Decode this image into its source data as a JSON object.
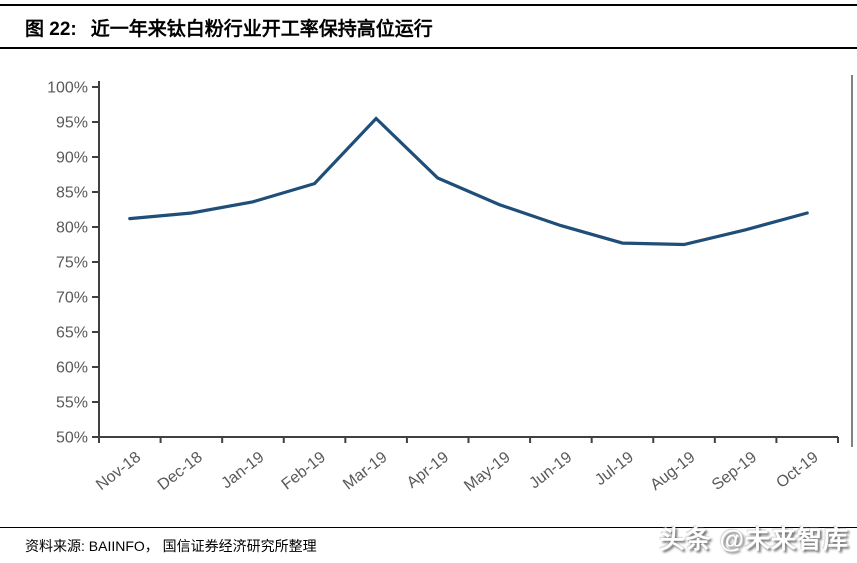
{
  "figure": {
    "label": "图 22:",
    "title": "近一年来钛白粉行业开工率保持高位运行"
  },
  "footer": {
    "source": "资料来源: BAIINFO， 国信证券经济研究所整理",
    "watermark": "头条 @未来智库"
  },
  "colors": {
    "line": "#1F4E79",
    "axis": "#404040",
    "right_border": "#595959",
    "tick_label": "#595959",
    "rule": "#000000"
  },
  "chart_data": {
    "type": "line",
    "title": "近一年来钛白粉行业开工率保持高位运行",
    "categories": [
      "Nov-18",
      "Dec-18",
      "Jan-19",
      "Feb-19",
      "Mar-19",
      "Apr-19",
      "May-19",
      "Jun-19",
      "Jul-19",
      "Aug-19",
      "Sep-19",
      "Oct-19"
    ],
    "values": [
      81.2,
      82.0,
      83.6,
      86.2,
      95.5,
      87.0,
      83.2,
      80.2,
      77.7,
      77.5,
      79.6,
      82.0
    ],
    "xlabel": "",
    "ylabel": "",
    "ylim": [
      50,
      100
    ],
    "ytick_step": 5,
    "y_tick_labels": [
      "100%",
      "95%",
      "90%",
      "85%",
      "80%",
      "75%",
      "70%",
      "65%",
      "60%",
      "55%",
      "50%"
    ],
    "grid": false,
    "legend_position": "none",
    "line_color": "#1F4E79",
    "x_label_rotation_deg": -38
  }
}
